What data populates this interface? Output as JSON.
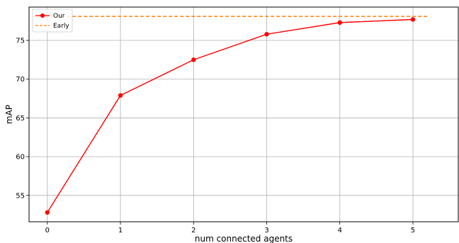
{
  "chart_data": {
    "type": "line",
    "title": "",
    "xlabel": "num connected agents",
    "ylabel": "mAP",
    "x": [
      0,
      1,
      2,
      3,
      4,
      5
    ],
    "xlim": [
      -0.25,
      5.62
    ],
    "ylim": [
      51.6,
      79.3
    ],
    "xticks": [
      0,
      1,
      2,
      3,
      4,
      5
    ],
    "yticks": [
      55,
      60,
      65,
      70,
      75
    ],
    "grid": true,
    "legend_position": "top-left",
    "series": [
      {
        "name": "Our",
        "style": "solid-with-markers",
        "color": "#ff0000",
        "values": [
          52.8,
          67.9,
          72.5,
          75.8,
          77.3,
          77.7
        ]
      },
      {
        "name": "Early",
        "style": "dashed",
        "color": "#ff7f0e",
        "x_range": [
          -0.2,
          5.2
        ],
        "value": 78.1
      }
    ]
  }
}
